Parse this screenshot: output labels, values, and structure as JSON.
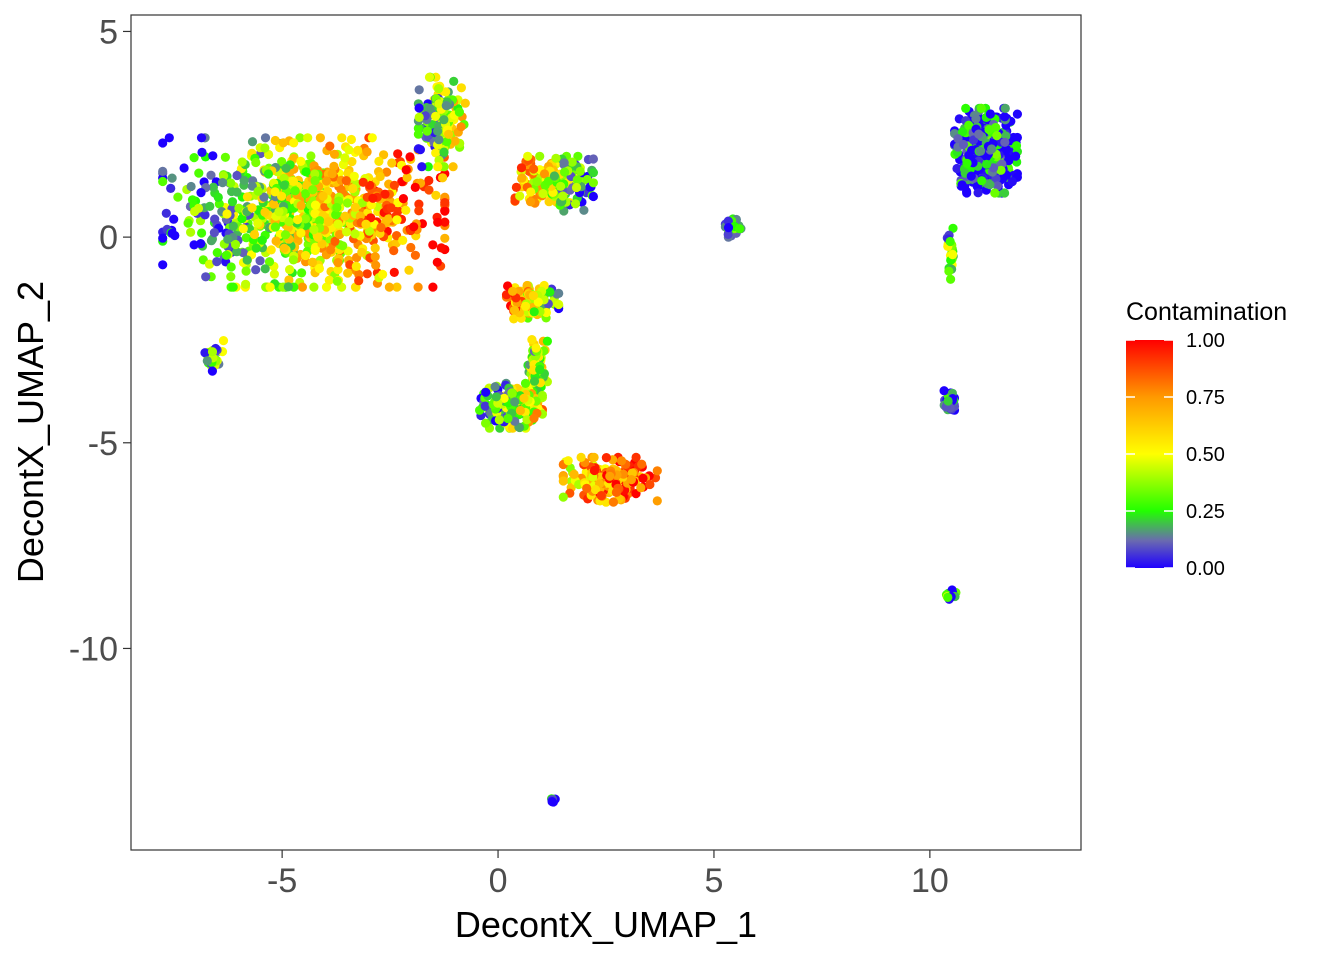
{
  "chart_data": {
    "type": "scatter",
    "title": "",
    "xlabel": "DecontX_UMAP_1",
    "ylabel": "DecontX_UMAP_2",
    "xlim": [
      -8.5,
      13.5
    ],
    "ylim": [
      -14.9,
      5.4
    ],
    "x_ticks": [
      -5,
      0,
      5,
      10
    ],
    "y_ticks": [
      5,
      0,
      -5,
      -10
    ],
    "x_tick_labels": [
      "-5",
      "0",
      "5",
      "10"
    ],
    "y_tick_labels": [
      "5",
      "0",
      "-5",
      "-10"
    ],
    "grid": false,
    "legend": {
      "title": "Contamination",
      "placement": "right",
      "range": [
        0,
        1
      ],
      "breaks": [
        1.0,
        0.75,
        0.5,
        0.25,
        0.0
      ],
      "labels": [
        "1.00",
        "0.75",
        "0.50",
        "0.25",
        "0.00"
      ],
      "gradient": [
        {
          "stop": 0.0,
          "color": "#1e00ff"
        },
        {
          "stop": 0.12,
          "color": "#6a6ab0"
        },
        {
          "stop": 0.25,
          "color": "#22ff00"
        },
        {
          "stop": 0.5,
          "color": "#ffff00"
        },
        {
          "stop": 0.75,
          "color": "#ff9900"
        },
        {
          "stop": 1.0,
          "color": "#ff0000"
        }
      ]
    },
    "clusters": [
      {
        "id": "main-left-cluster",
        "cx": -4.5,
        "cy": 0.6,
        "sx": 2.7,
        "sy": 1.5,
        "n": 900,
        "contamination_left": 0.08,
        "contamination_right": 0.9
      },
      {
        "id": "upper-neck-cluster",
        "cx": -1.3,
        "cy": 2.8,
        "sx": 0.45,
        "sy": 0.9,
        "n": 160,
        "contamination_left": 0.15,
        "contamination_right": 0.55
      },
      {
        "id": "upper-right-arm-cluster",
        "cx": 1.3,
        "cy": 1.3,
        "sx": 0.75,
        "sy": 0.55,
        "n": 200,
        "contamination_left": 0.75,
        "contamination_right": 0.1
      },
      {
        "id": "small-left-arc-cluster",
        "cx": -6.6,
        "cy": -2.9,
        "sx": 0.2,
        "sy": 0.4,
        "n": 35,
        "contamination_left": 0.15,
        "contamination_right": 0.3
      },
      {
        "id": "middle-upper-cluster",
        "cx": 0.8,
        "cy": -1.6,
        "sx": 0.5,
        "sy": 0.35,
        "n": 140,
        "contamination_left": 0.85,
        "contamination_right": 0.2
      },
      {
        "id": "middle-stem-cluster",
        "cx": 0.9,
        "cy": -3.2,
        "sx": 0.2,
        "sy": 0.7,
        "n": 90,
        "contamination_left": 0.35,
        "contamination_right": 0.45
      },
      {
        "id": "middle-lower-cluster",
        "cx": 0.3,
        "cy": -4.1,
        "sx": 0.6,
        "sy": 0.45,
        "n": 220,
        "contamination_left": 0.1,
        "contamination_right": 0.6
      },
      {
        "id": "lower-branch-cluster",
        "cx": 2.6,
        "cy": -5.9,
        "sx": 0.9,
        "sy": 0.45,
        "n": 200,
        "contamination_left": 0.6,
        "contamination_right": 0.98
      },
      {
        "id": "small-diagonal-cluster",
        "cx": 5.4,
        "cy": 0.2,
        "sx": 0.2,
        "sy": 0.25,
        "n": 25,
        "contamination_left": 0.2,
        "contamination_right": 0.05
      },
      {
        "id": "right-large-cluster",
        "cx": 11.3,
        "cy": 2.1,
        "sx": 0.6,
        "sy": 0.85,
        "n": 420,
        "contamination_left": 0.05,
        "contamination_right": 0.1
      },
      {
        "id": "right-stem-cluster",
        "cx": 10.5,
        "cy": -0.3,
        "sx": 0.1,
        "sy": 0.6,
        "n": 25,
        "contamination_left": 0.3,
        "contamination_right": 0.3
      },
      {
        "id": "right-mid-small-cluster",
        "cx": 10.45,
        "cy": -4.0,
        "sx": 0.1,
        "sy": 0.22,
        "n": 30,
        "contamination_left": 0.05,
        "contamination_right": 0.05
      },
      {
        "id": "right-bottom-small-cluster",
        "cx": 10.5,
        "cy": -8.7,
        "sx": 0.1,
        "sy": 0.1,
        "n": 12,
        "contamination_left": 0.2,
        "contamination_right": 0.05
      },
      {
        "id": "bottom-isolated-cluster",
        "cx": 1.25,
        "cy": -13.7,
        "sx": 0.06,
        "sy": 0.06,
        "n": 6,
        "contamination_left": 0.05,
        "contamination_right": 0.05
      }
    ]
  }
}
